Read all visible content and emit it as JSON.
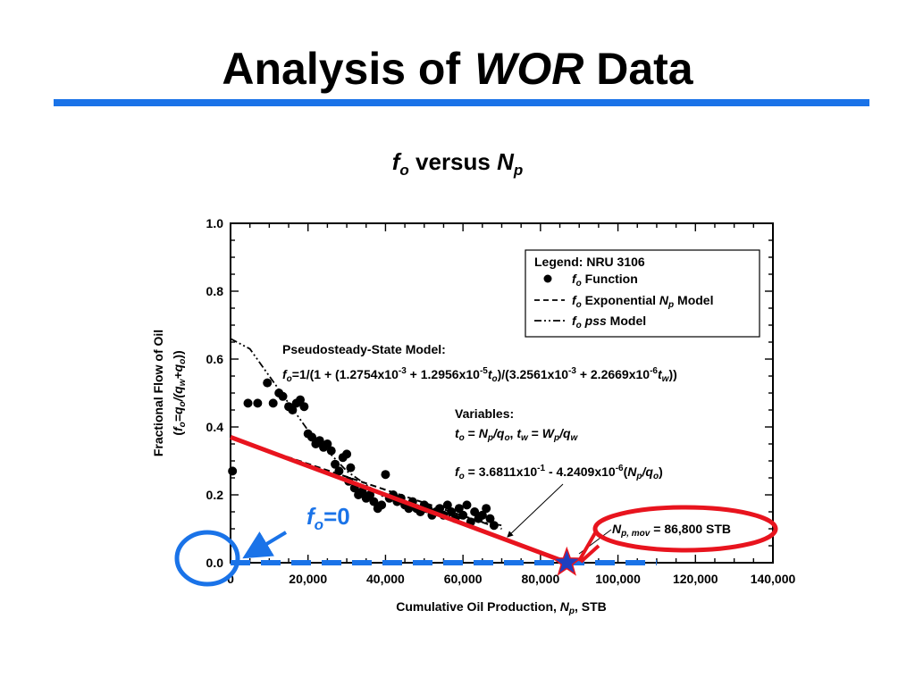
{
  "slide": {
    "title_plain": "Analysis of",
    "title_italic": "WOR",
    "title_end": "Data",
    "subtitle_var1": "f",
    "subtitle_var1_sub": "o",
    "subtitle_mid": " versus ",
    "subtitle_var2": "N",
    "subtitle_var2_sub": "p"
  },
  "chart_data": {
    "type": "scatter",
    "xlabel": "Cumulative Oil Production, Np, STB",
    "ylabel_line1": "Fractional Flow of Oil",
    "ylabel_line2": "(fo=qo/(qw+qo))",
    "xlim": [
      0,
      140000
    ],
    "ylim": [
      0,
      1.0
    ],
    "x_ticks": [
      0,
      20000,
      40000,
      60000,
      80000,
      100000,
      120000,
      140000
    ],
    "x_tick_labels": [
      "0",
      "20,000",
      "40,000",
      "60,000",
      "80,000",
      "100,000",
      "120,000",
      "140,000"
    ],
    "y_ticks": [
      0,
      0.2,
      0.4,
      0.6,
      0.8,
      1.0
    ],
    "y_tick_labels": [
      "0.0",
      "0.2",
      "0.4",
      "0.6",
      "0.8",
      "1.0"
    ],
    "legend": {
      "title": "Legend: NRU 3106",
      "placement": "top-right",
      "entries": [
        {
          "marker": "dot",
          "label": "fo Function"
        },
        {
          "marker": "dashed",
          "label": "fo Exponential Np Model"
        },
        {
          "marker": "dash-dot-dot",
          "label": "fo pss Model"
        }
      ]
    },
    "series": [
      {
        "name": "fo Function",
        "style": "scatter",
        "x": [
          500,
          4500,
          7000,
          9500,
          11000,
          12500,
          13500,
          15000,
          16000,
          17000,
          18000,
          19000,
          20000,
          21000,
          22000,
          23000,
          24000,
          25000,
          26000,
          27000,
          28000,
          29000,
          30000,
          30500,
          31000,
          32000,
          33000,
          34000,
          35000,
          36000,
          37000,
          38000,
          39000,
          40000,
          41000,
          42000,
          43000,
          44000,
          45000,
          46000,
          47000,
          48000,
          49000,
          50000,
          51000,
          52000,
          53000,
          54000,
          55000,
          56000,
          57000,
          58000,
          59000,
          60000,
          61000,
          62000,
          63000,
          64000,
          65000,
          66000,
          67000,
          68000
        ],
        "y": [
          0.27,
          0.47,
          0.47,
          0.53,
          0.47,
          0.5,
          0.49,
          0.46,
          0.45,
          0.47,
          0.48,
          0.46,
          0.38,
          0.37,
          0.35,
          0.36,
          0.34,
          0.35,
          0.33,
          0.29,
          0.27,
          0.31,
          0.32,
          0.24,
          0.28,
          0.22,
          0.2,
          0.21,
          0.19,
          0.2,
          0.18,
          0.16,
          0.17,
          0.26,
          0.19,
          0.2,
          0.18,
          0.19,
          0.17,
          0.16,
          0.18,
          0.16,
          0.15,
          0.17,
          0.16,
          0.14,
          0.15,
          0.16,
          0.14,
          0.17,
          0.15,
          0.13,
          0.16,
          0.14,
          0.17,
          0.12,
          0.15,
          0.13,
          0.14,
          0.16,
          0.13,
          0.11
        ]
      },
      {
        "name": "fo Exponential Np Model",
        "style": "dashed",
        "x": [
          0,
          70000
        ],
        "y": [
          0.368,
          0.1
        ]
      },
      {
        "name": "fo pss Model",
        "style": "dash-dot-dot",
        "x": [
          0,
          5000,
          10000,
          15000,
          20000,
          25000,
          30000,
          35000,
          40000,
          45000,
          50000,
          55000,
          60000,
          65000,
          70000
        ],
        "y": [
          0.66,
          0.63,
          0.55,
          0.47,
          0.39,
          0.33,
          0.27,
          0.23,
          0.19,
          0.17,
          0.15,
          0.14,
          0.13,
          0.12,
          0.11
        ]
      },
      {
        "name": "red trend line",
        "style": "red-line",
        "x": [
          0,
          87000
        ],
        "y": [
          0.37,
          0.0
        ]
      },
      {
        "name": "fo=0 line",
        "style": "blue-dashed",
        "x": [
          0,
          110000
        ],
        "y": [
          0.0,
          0.0
        ]
      }
    ],
    "annotations": {
      "pss_title": "Pseudosteady-State Model:",
      "pss_formula": "fo=1/(1 + (1.2754x10-3 + 1.2956x10-5to)/(3.2561x10-3 + 2.2669x10-6tw))",
      "variables_title": "Variables:",
      "variables_def": "to = Np/qo,   tw = Wp/qw",
      "exp_formula": "fo = 3.6811x10-1 - 4.2409x10-6(Np/qo)",
      "np_mov": "Np, mov = 86,800 STB",
      "fo_zero": "fo=0",
      "np_mov_value": 86800
    },
    "colors": {
      "trend": "#e8141e",
      "zero_line": "#1a73e8",
      "star": "#1f3fbf",
      "oval_red": "#e8141e",
      "oval_blue": "#1a73e8"
    }
  }
}
